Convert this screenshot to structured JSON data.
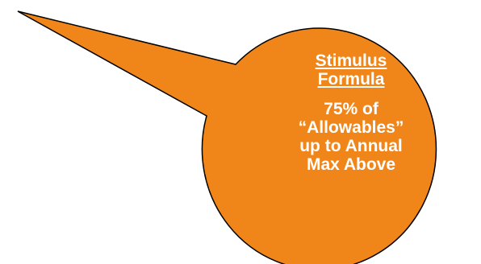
{
  "callout": {
    "title_lines": [
      "Stimulus",
      "Formula"
    ],
    "body_lines": [
      "75% of",
      "“Allowables”",
      "up to Annual",
      "Max Above"
    ],
    "fill_color": "#F0861A",
    "stroke_color": "#000000",
    "text_color": "#FFFFFF",
    "title_underlined": true
  }
}
